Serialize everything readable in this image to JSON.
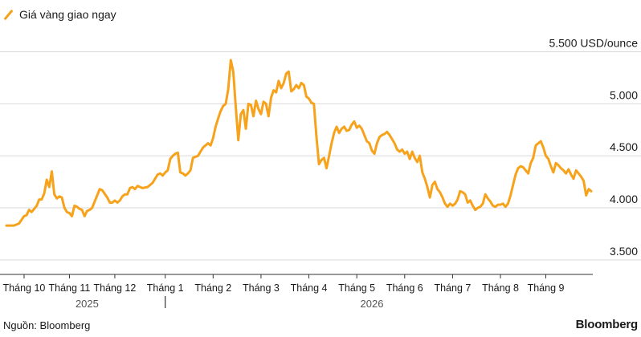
{
  "legend": {
    "label": "Giá vàng giao ngay",
    "color": "#f7a21b"
  },
  "footer": {
    "source": "Nguồn: Bloomberg",
    "brand": "Bloomberg"
  },
  "chart_data": {
    "type": "line",
    "series": [
      {
        "name": "Giá vàng giao ngay",
        "color": "#f7a21b",
        "points": [
          [
            0,
            3830
          ],
          [
            3,
            3830
          ],
          [
            5,
            3850
          ],
          [
            7,
            3920
          ],
          [
            8,
            3930
          ],
          [
            9,
            3980
          ],
          [
            10,
            3960
          ],
          [
            12,
            4020
          ],
          [
            13,
            4080
          ],
          [
            14,
            4080
          ],
          [
            15,
            4140
          ],
          [
            16,
            4270
          ],
          [
            17,
            4200
          ],
          [
            18,
            4350
          ],
          [
            19,
            4130
          ],
          [
            20,
            4090
          ],
          [
            21,
            4110
          ],
          [
            22,
            4100
          ],
          [
            23,
            4000
          ],
          [
            24,
            3960
          ],
          [
            25,
            3950
          ],
          [
            26,
            3920
          ],
          [
            27,
            4020
          ],
          [
            28,
            4010
          ],
          [
            29,
            3990
          ],
          [
            30,
            3980
          ],
          [
            31,
            3920
          ],
          [
            32,
            3970
          ],
          [
            33,
            3980
          ],
          [
            34,
            4000
          ],
          [
            36,
            4120
          ],
          [
            37,
            4180
          ],
          [
            38,
            4170
          ],
          [
            40,
            4100
          ],
          [
            41,
            4050
          ],
          [
            42,
            4050
          ],
          [
            43,
            4070
          ],
          [
            44,
            4050
          ],
          [
            45,
            4070
          ],
          [
            46,
            4110
          ],
          [
            47,
            4130
          ],
          [
            48,
            4130
          ],
          [
            49,
            4190
          ],
          [
            50,
            4200
          ],
          [
            51,
            4180
          ],
          [
            52,
            4210
          ],
          [
            54,
            4190
          ],
          [
            56,
            4200
          ],
          [
            57,
            4220
          ],
          [
            58,
            4240
          ],
          [
            59,
            4280
          ],
          [
            60,
            4320
          ],
          [
            61,
            4330
          ],
          [
            62,
            4310
          ],
          [
            63,
            4340
          ],
          [
            64,
            4360
          ],
          [
            65,
            4470
          ],
          [
            66,
            4500
          ],
          [
            67,
            4520
          ],
          [
            68,
            4530
          ],
          [
            69,
            4340
          ],
          [
            70,
            4330
          ],
          [
            71,
            4310
          ],
          [
            72,
            4330
          ],
          [
            73,
            4360
          ],
          [
            74,
            4480
          ],
          [
            75,
            4490
          ],
          [
            76,
            4500
          ],
          [
            77,
            4540
          ],
          [
            78,
            4580
          ],
          [
            79,
            4600
          ],
          [
            80,
            4620
          ],
          [
            81,
            4600
          ],
          [
            82,
            4670
          ],
          [
            83,
            4780
          ],
          [
            84,
            4860
          ],
          [
            85,
            4930
          ],
          [
            86,
            4980
          ],
          [
            87,
            5000
          ],
          [
            88,
            5140
          ],
          [
            89,
            5420
          ],
          [
            90,
            5310
          ],
          [
            91,
            4960
          ],
          [
            92,
            4650
          ],
          [
            93,
            4900
          ],
          [
            94,
            4940
          ],
          [
            95,
            4760
          ],
          [
            96,
            5000
          ],
          [
            97,
            4990
          ],
          [
            98,
            4880
          ],
          [
            99,
            5030
          ],
          [
            100,
            4950
          ],
          [
            101,
            4900
          ],
          [
            102,
            5020
          ],
          [
            103,
            5000
          ],
          [
            104,
            4880
          ],
          [
            105,
            5060
          ],
          [
            106,
            5130
          ],
          [
            107,
            5110
          ],
          [
            108,
            5220
          ],
          [
            109,
            5150
          ],
          [
            110,
            5200
          ],
          [
            111,
            5290
          ],
          [
            112,
            5310
          ],
          [
            113,
            5120
          ],
          [
            114,
            5140
          ],
          [
            115,
            5180
          ],
          [
            116,
            5150
          ],
          [
            117,
            5200
          ],
          [
            118,
            5180
          ],
          [
            119,
            5070
          ],
          [
            120,
            5050
          ],
          [
            121,
            5010
          ],
          [
            122,
            5000
          ],
          [
            123,
            4680
          ],
          [
            124,
            4420
          ],
          [
            125,
            4460
          ],
          [
            126,
            4480
          ],
          [
            127,
            4380
          ],
          [
            128,
            4500
          ],
          [
            129,
            4620
          ],
          [
            130,
            4720
          ],
          [
            131,
            4780
          ],
          [
            132,
            4720
          ],
          [
            133,
            4760
          ],
          [
            134,
            4780
          ],
          [
            135,
            4740
          ],
          [
            136,
            4750
          ],
          [
            137,
            4800
          ],
          [
            138,
            4830
          ],
          [
            139,
            4770
          ],
          [
            140,
            4790
          ],
          [
            141,
            4760
          ],
          [
            142,
            4700
          ],
          [
            143,
            4640
          ],
          [
            144,
            4620
          ],
          [
            145,
            4550
          ],
          [
            146,
            4520
          ],
          [
            147,
            4620
          ],
          [
            148,
            4680
          ],
          [
            149,
            4700
          ],
          [
            150,
            4710
          ],
          [
            151,
            4730
          ],
          [
            152,
            4700
          ],
          [
            153,
            4660
          ],
          [
            154,
            4620
          ],
          [
            155,
            4560
          ],
          [
            156,
            4540
          ],
          [
            157,
            4560
          ],
          [
            158,
            4520
          ],
          [
            159,
            4540
          ],
          [
            160,
            4470
          ],
          [
            161,
            4540
          ],
          [
            162,
            4480
          ],
          [
            163,
            4440
          ],
          [
            164,
            4500
          ],
          [
            165,
            4340
          ],
          [
            166,
            4280
          ],
          [
            167,
            4200
          ],
          [
            168,
            4100
          ],
          [
            169,
            4220
          ],
          [
            170,
            4250
          ],
          [
            171,
            4180
          ],
          [
            172,
            4150
          ],
          [
            173,
            4100
          ],
          [
            174,
            4040
          ],
          [
            175,
            4010
          ],
          [
            176,
            4040
          ],
          [
            177,
            4020
          ],
          [
            178,
            4040
          ],
          [
            179,
            4080
          ],
          [
            180,
            4160
          ],
          [
            181,
            4150
          ],
          [
            182,
            4130
          ],
          [
            183,
            4050
          ],
          [
            184,
            4070
          ],
          [
            185,
            4020
          ],
          [
            186,
            3980
          ],
          [
            187,
            4000
          ],
          [
            188,
            4010
          ],
          [
            189,
            4040
          ],
          [
            190,
            4130
          ],
          [
            191,
            4090
          ],
          [
            192,
            4060
          ],
          [
            193,
            4020
          ],
          [
            194,
            4010
          ],
          [
            195,
            4030
          ],
          [
            196,
            4030
          ],
          [
            197,
            4040
          ],
          [
            198,
            4010
          ],
          [
            199,
            4040
          ],
          [
            200,
            4120
          ],
          [
            201,
            4220
          ],
          [
            202,
            4320
          ],
          [
            203,
            4380
          ],
          [
            204,
            4400
          ],
          [
            205,
            4390
          ],
          [
            206,
            4360
          ],
          [
            207,
            4330
          ],
          [
            208,
            4430
          ],
          [
            209,
            4480
          ],
          [
            210,
            4600
          ],
          [
            211,
            4620
          ],
          [
            212,
            4640
          ],
          [
            213,
            4580
          ],
          [
            214,
            4500
          ],
          [
            215,
            4470
          ],
          [
            216,
            4400
          ],
          [
            217,
            4340
          ],
          [
            218,
            4430
          ],
          [
            219,
            4410
          ],
          [
            220,
            4380
          ],
          [
            221,
            4360
          ],
          [
            222,
            4330
          ],
          [
            223,
            4370
          ],
          [
            224,
            4320
          ],
          [
            225,
            4280
          ],
          [
            226,
            4360
          ],
          [
            227,
            4330
          ],
          [
            228,
            4300
          ],
          [
            229,
            4260
          ],
          [
            230,
            4120
          ],
          [
            231,
            4180
          ],
          [
            232,
            4160
          ]
        ]
      }
    ],
    "y_axis": {
      "unit": "USD/ounce",
      "ticks": [
        3500,
        4000,
        4500,
        5000,
        5500
      ],
      "tick_labels": [
        "3.500",
        "4.000",
        "4.500",
        "5.000",
        "5.500 USD/ounce"
      ],
      "range": [
        3360,
        5720
      ]
    },
    "x_axis": {
      "range": [
        0,
        232
      ],
      "ticks": [
        {
          "x": 7,
          "label": "Tháng 10"
        },
        {
          "x": 25,
          "label": "Tháng 11"
        },
        {
          "x": 43,
          "label": "Tháng 12"
        },
        {
          "x": 63,
          "label": "Tháng 1"
        },
        {
          "x": 82,
          "label": "Tháng 2"
        },
        {
          "x": 101,
          "label": "Tháng 3"
        },
        {
          "x": 120,
          "label": "Tháng 4"
        },
        {
          "x": 139,
          "label": "Tháng 5"
        },
        {
          "x": 158,
          "label": "Tháng 6"
        },
        {
          "x": 177,
          "label": "Tháng 7"
        },
        {
          "x": 196,
          "label": "Tháng 8"
        },
        {
          "x": 214,
          "label": "Tháng 9"
        }
      ],
      "years": [
        {
          "x": 32,
          "label": "2025"
        },
        {
          "x": 145,
          "label": "2026"
        }
      ],
      "year_divider_x": 63
    },
    "grid": true
  }
}
